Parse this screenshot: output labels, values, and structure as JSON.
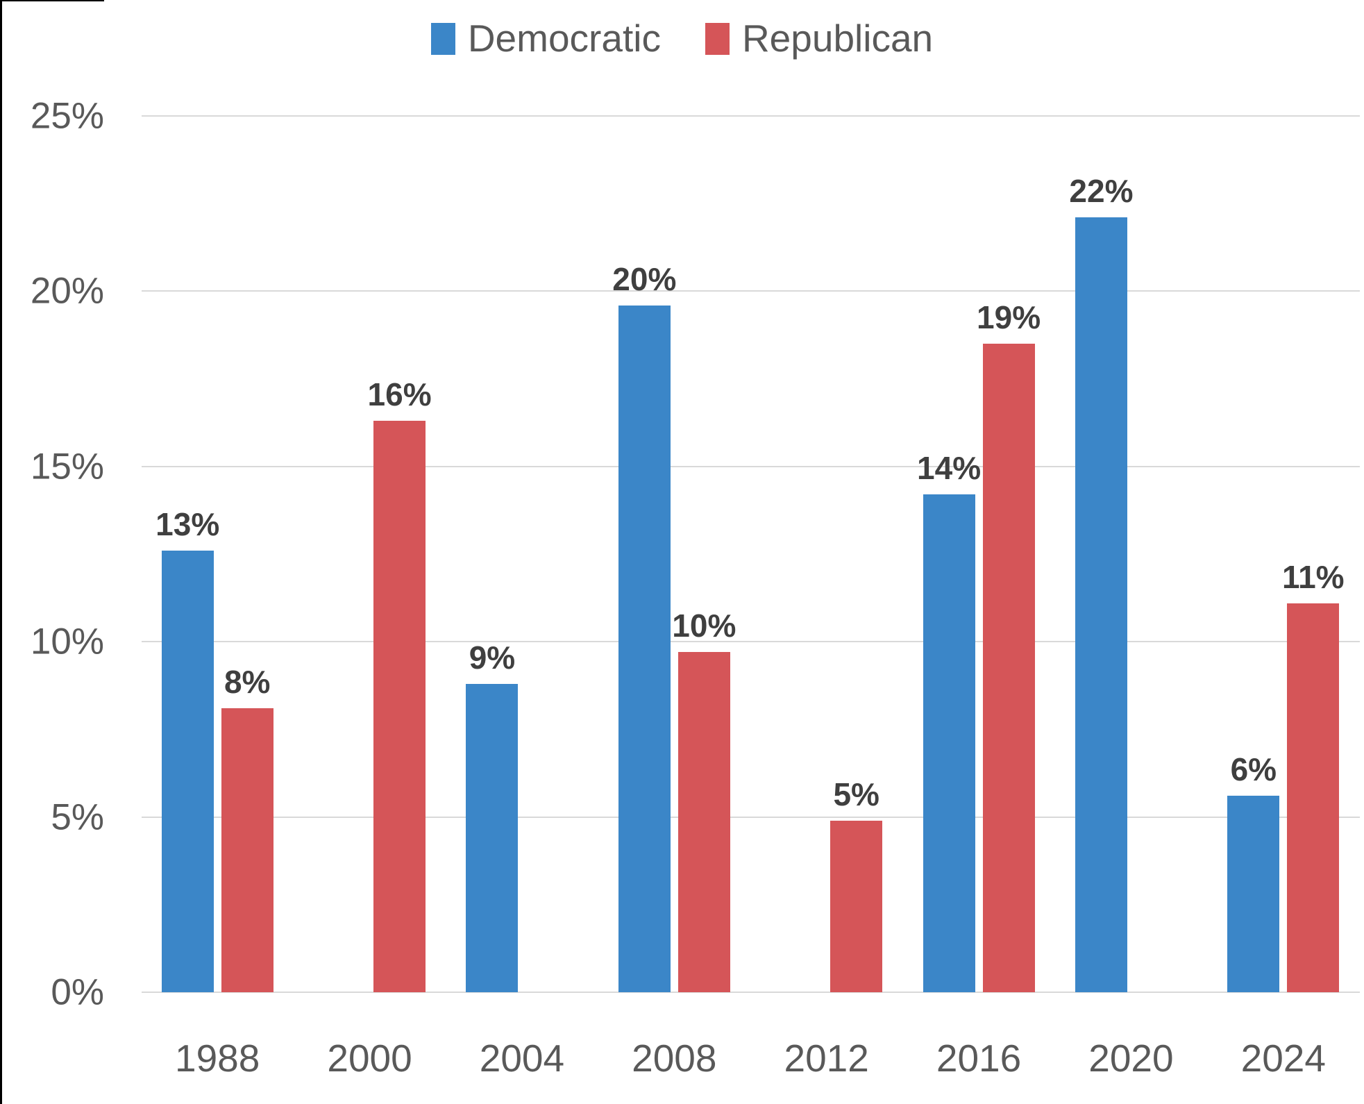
{
  "chart_data": {
    "type": "bar",
    "title": "",
    "xlabel": "",
    "ylabel": "",
    "categories": [
      "1988",
      "2000",
      "2004",
      "2008",
      "2012",
      "2016",
      "2020",
      "2024"
    ],
    "series": [
      {
        "name": "Democratic",
        "color": "#3b86c8",
        "values": [
          12.6,
          null,
          8.8,
          19.6,
          null,
          14.2,
          22.1,
          5.6
        ],
        "labels": [
          "13%",
          null,
          "9%",
          "20%",
          null,
          "14%",
          "22%",
          "6%"
        ]
      },
      {
        "name": "Republican",
        "color": "#d55558",
        "values": [
          8.1,
          16.3,
          null,
          9.7,
          4.9,
          18.5,
          null,
          11.1
        ],
        "labels": [
          "8%",
          "16%",
          null,
          "10%",
          "5%",
          "19%",
          null,
          "11%"
        ]
      }
    ],
    "ylim": [
      0,
      25
    ],
    "yticks": [
      {
        "value": 0,
        "label": "0%"
      },
      {
        "value": 5,
        "label": "5%"
      },
      {
        "value": 10,
        "label": "10%"
      },
      {
        "value": 15,
        "label": "15%"
      },
      {
        "value": 20,
        "label": "20%"
      },
      {
        "value": 25,
        "label": "25%"
      }
    ],
    "grid": "horizontal",
    "legend_position": "top",
    "colors": {
      "gridline": "#d9d9d9",
      "axis_text": "#595959",
      "data_label_text": "#3f3f3f"
    }
  }
}
